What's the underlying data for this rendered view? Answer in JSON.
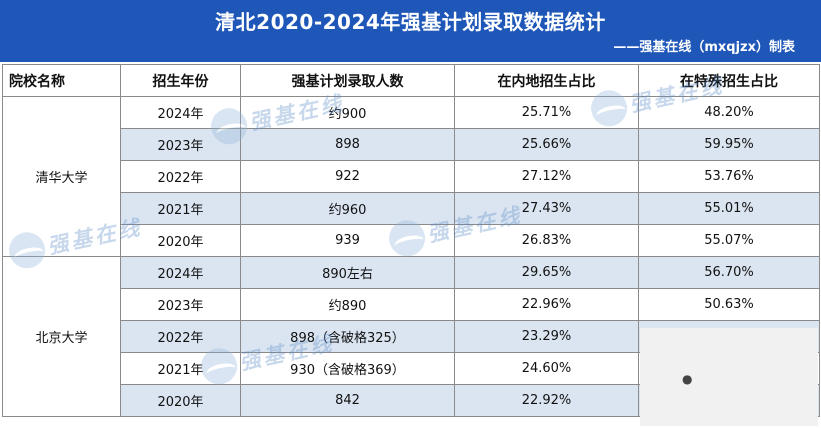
{
  "header": {
    "title": "清北2020-2024年强基计划录取数据统计",
    "subtitle": "——强基在线（mxqjzx）制表"
  },
  "table": {
    "columns": [
      "院校名称",
      "招生年份",
      "强基计划录取人数",
      "在内地招生占比",
      "在特殊招生占比"
    ],
    "groups": [
      {
        "school": "清华大学",
        "rows": [
          {
            "year": "2024年",
            "count": "约900",
            "mainland": "25.71%",
            "special": "48.20%"
          },
          {
            "year": "2023年",
            "count": "898",
            "mainland": "25.66%",
            "special": "59.95%"
          },
          {
            "year": "2022年",
            "count": "922",
            "mainland": "27.12%",
            "special": "53.76%"
          },
          {
            "year": "2021年",
            "count": "约960",
            "mainland": "27.43%",
            "special": "55.01%"
          },
          {
            "year": "2020年",
            "count": "939",
            "mainland": "26.83%",
            "special": "55.07%"
          }
        ]
      },
      {
        "school": "北京大学",
        "rows": [
          {
            "year": "2024年",
            "count": "890左右",
            "mainland": "29.65%",
            "special": "56.70%"
          },
          {
            "year": "2023年",
            "count": "约890",
            "mainland": "22.96%",
            "special": "50.63%"
          },
          {
            "year": "2022年",
            "count": "898（含破格325）",
            "mainland": "23.29%",
            "special": ""
          },
          {
            "year": "2021年",
            "count": "930（含破格369）",
            "mainland": "24.60%",
            "special": ""
          },
          {
            "year": "2020年",
            "count": "842",
            "mainland": "22.92%",
            "special": ""
          }
        ]
      }
    ]
  },
  "watermark": {
    "text": "强基在线"
  },
  "colors": {
    "header_bg": "#1f57b8",
    "stripe": "#dbe5f1",
    "border": "#8a8a8a"
  }
}
